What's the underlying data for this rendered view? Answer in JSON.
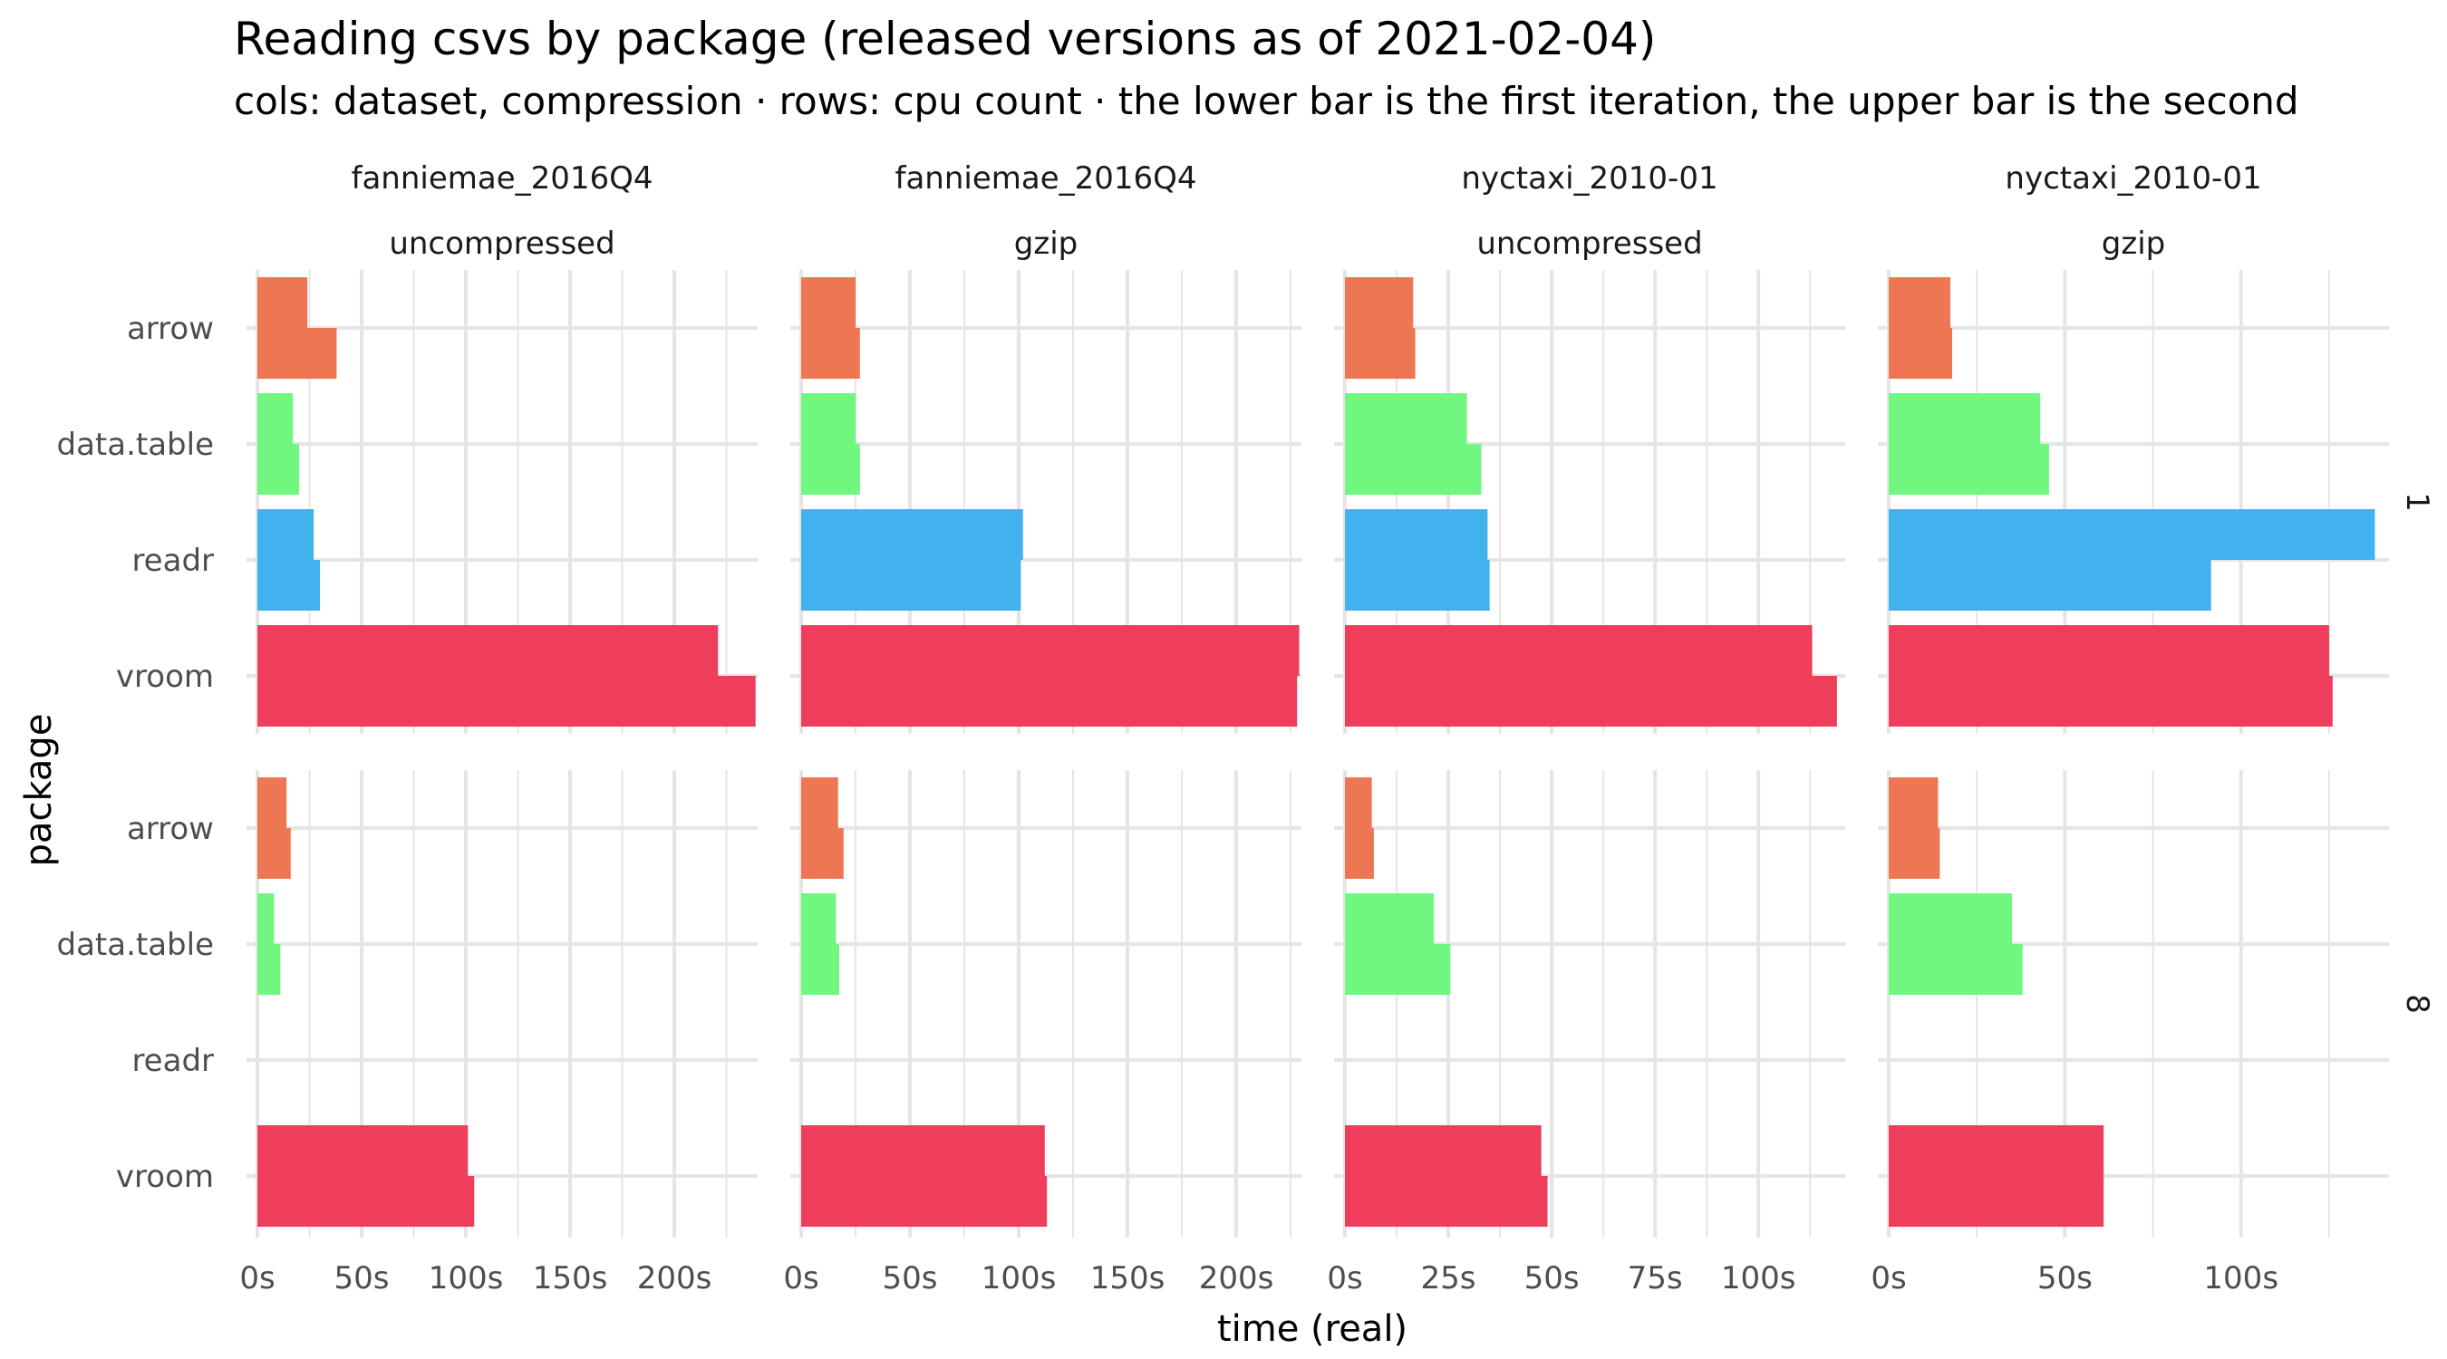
{
  "title": "Reading csvs by package (released versions as of 2021-02-04)",
  "subtitle": "cols: dataset, compression · rows: cpu count · the lower bar is the first iteration, the upper bar is the second",
  "colors": {
    "arrow": "#EE7753",
    "data.table": "#6FF77F",
    "readr": "#41B2EE",
    "vroom": "#EE3E5C",
    "grid": "#E5E5E5"
  },
  "chart_data": {
    "type": "bar",
    "orientation": "horizontal",
    "facet_grid": true,
    "xlabel": "time (real)",
    "ylabel": "package",
    "grid": true,
    "legend": "none",
    "categories": [
      "arrow",
      "data.table",
      "readr",
      "vroom"
    ],
    "row_strips": [
      "1",
      "8"
    ],
    "columns": [
      {
        "dataset": "fanniemae_2016Q4",
        "compression": "uncompressed",
        "xlim": [
          0,
          240
        ],
        "ticks": [
          0,
          50,
          100,
          150,
          200
        ],
        "tick_labels": [
          "0s",
          "50s",
          "100s",
          "150s",
          "200s"
        ]
      },
      {
        "dataset": "fanniemae_2016Q4",
        "compression": "gzip",
        "xlim": [
          0,
          230
        ],
        "ticks": [
          0,
          50,
          100,
          150,
          200
        ],
        "tick_labels": [
          "0s",
          "50s",
          "100s",
          "150s",
          "200s"
        ]
      },
      {
        "dataset": "nyctaxi_2010-01",
        "compression": "uncompressed",
        "xlim": [
          0,
          121
        ],
        "ticks": [
          0,
          25,
          50,
          75,
          100
        ],
        "tick_labels": [
          "0s",
          "25s",
          "50s",
          "75s",
          "100s"
        ]
      },
      {
        "dataset": "nyctaxi_2010-01",
        "compression": "gzip",
        "xlim": [
          0,
          142
        ],
        "ticks": [
          0,
          50,
          100
        ],
        "tick_labels": [
          "0s",
          "50s",
          "100s"
        ]
      }
    ],
    "panels": [
      {
        "cpu": "1",
        "column": 0,
        "series": [
          {
            "package": "arrow",
            "first": 38,
            "second": 24
          },
          {
            "package": "data.table",
            "first": 20,
            "second": 17
          },
          {
            "package": "readr",
            "first": 30,
            "second": 27
          },
          {
            "package": "vroom",
            "first": 239,
            "second": 221
          }
        ]
      },
      {
        "cpu": "1",
        "column": 1,
        "series": [
          {
            "package": "arrow",
            "first": 27,
            "second": 25
          },
          {
            "package": "data.table",
            "first": 27,
            "second": 25
          },
          {
            "package": "readr",
            "first": 101,
            "second": 102
          },
          {
            "package": "vroom",
            "first": 228,
            "second": 229
          }
        ]
      },
      {
        "cpu": "1",
        "column": 2,
        "series": [
          {
            "package": "arrow",
            "first": 17,
            "second": 16.5
          },
          {
            "package": "data.table",
            "first": 33,
            "second": 29.5
          },
          {
            "package": "readr",
            "first": 35,
            "second": 34.5
          },
          {
            "package": "vroom",
            "first": 119,
            "second": 113
          }
        ]
      },
      {
        "cpu": "1",
        "column": 3,
        "series": [
          {
            "package": "arrow",
            "first": 18,
            "second": 17.5
          },
          {
            "package": "data.table",
            "first": 45.5,
            "second": 43
          },
          {
            "package": "readr",
            "first": 91.5,
            "second": 138
          },
          {
            "package": "vroom",
            "first": 126,
            "second": 125
          }
        ]
      },
      {
        "cpu": "8",
        "column": 0,
        "series": [
          {
            "package": "arrow",
            "first": 16,
            "second": 14
          },
          {
            "package": "data.table",
            "first": 11,
            "second": 8
          },
          {
            "package": "readr",
            "first": null,
            "second": null
          },
          {
            "package": "vroom",
            "first": 104,
            "second": 101
          }
        ]
      },
      {
        "cpu": "8",
        "column": 1,
        "series": [
          {
            "package": "arrow",
            "first": 19.5,
            "second": 17
          },
          {
            "package": "data.table",
            "first": 17.5,
            "second": 16
          },
          {
            "package": "readr",
            "first": null,
            "second": null
          },
          {
            "package": "vroom",
            "first": 113,
            "second": 112
          }
        ]
      },
      {
        "cpu": "8",
        "column": 2,
        "series": [
          {
            "package": "arrow",
            "first": 7,
            "second": 6.5
          },
          {
            "package": "data.table",
            "first": 25.5,
            "second": 21.5
          },
          {
            "package": "readr",
            "first": null,
            "second": null
          },
          {
            "package": "vroom",
            "first": 49,
            "second": 47.5
          }
        ]
      },
      {
        "cpu": "8",
        "column": 3,
        "series": [
          {
            "package": "arrow",
            "first": 14.5,
            "second": 14
          },
          {
            "package": "data.table",
            "first": 38,
            "second": 35
          },
          {
            "package": "readr",
            "first": null,
            "second": null
          },
          {
            "package": "vroom",
            "first": 61,
            "second": 61
          }
        ]
      }
    ]
  }
}
